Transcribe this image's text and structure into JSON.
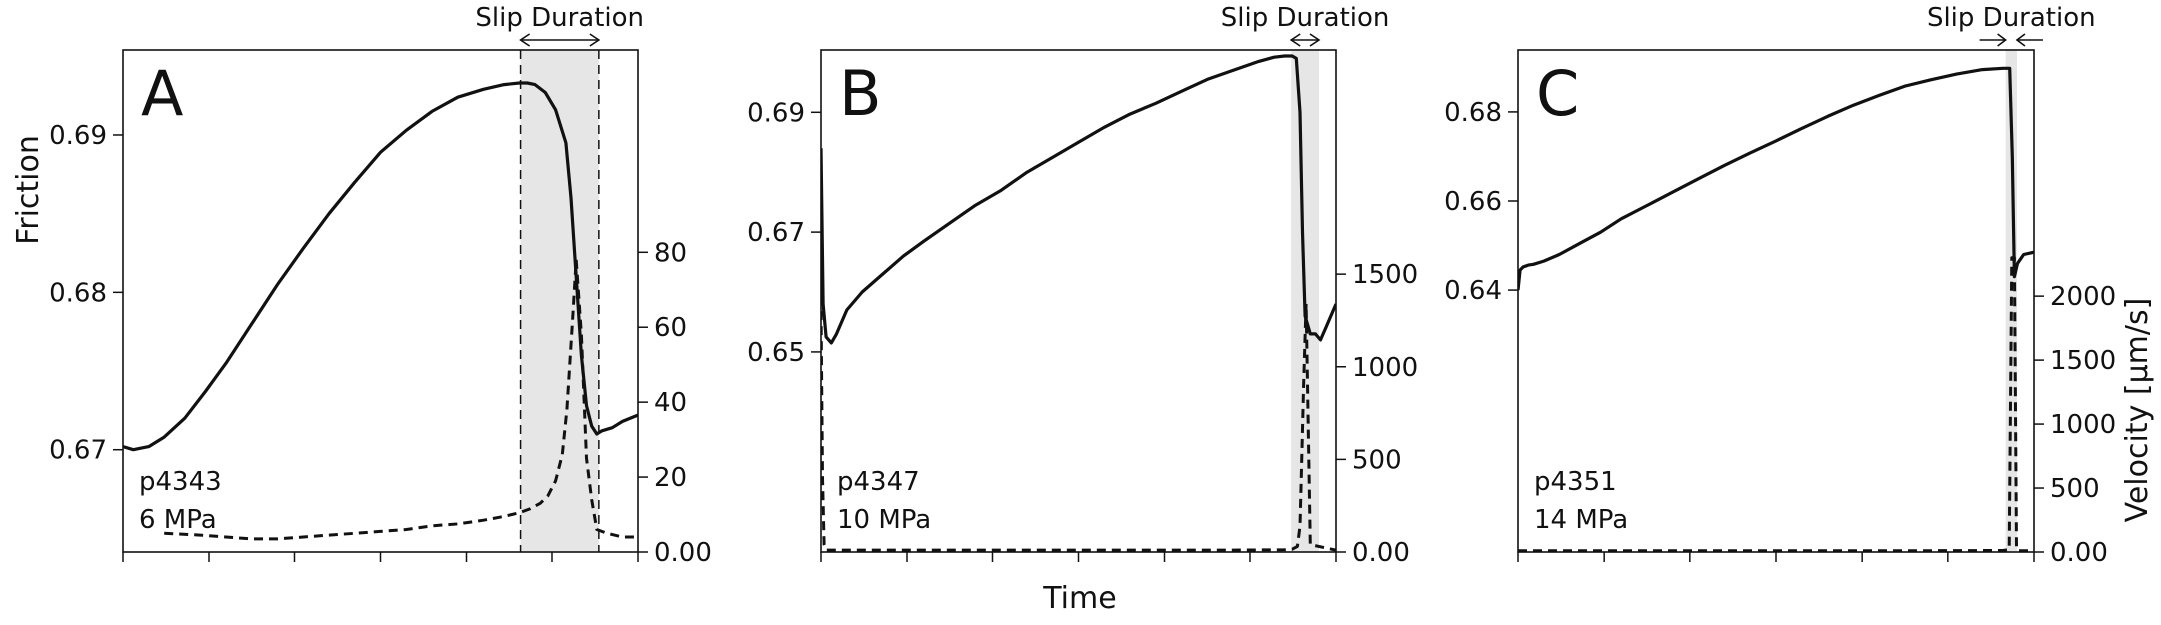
{
  "figure": {
    "x_label": "Time",
    "friction_label": "Friction",
    "velocity_label": "Velocity [μm/s]",
    "slip_label": "Slip Duration"
  },
  "chart_data": [
    {
      "type": "line",
      "panel": "A",
      "experiment": "p4343",
      "stress": "6 MPa",
      "xlim": [
        0,
        100
      ],
      "friction_ylim": [
        0.6635,
        0.6954
      ],
      "velocity_ylim": [
        0,
        134
      ],
      "friction_ticks": [
        0.67,
        0.68,
        0.69
      ],
      "velocity_ticks": [
        0,
        20,
        40,
        60,
        80
      ],
      "x_ticks": [
        0,
        16.7,
        33.3,
        50,
        66.7,
        83.3,
        100
      ],
      "slip_window": [
        77.2,
        92.4
      ],
      "series": [
        {
          "name": "Friction",
          "x": [
            0,
            2,
            5,
            8,
            12,
            16,
            20,
            25,
            30,
            35,
            40,
            45,
            50,
            55,
            60,
            65,
            70,
            74,
            77,
            78.5,
            80,
            82,
            84,
            86,
            87,
            88,
            89,
            90,
            91,
            92,
            93,
            95,
            97,
            100
          ],
          "y": [
            0.6702,
            0.67,
            0.6702,
            0.6708,
            0.672,
            0.6737,
            0.6755,
            0.678,
            0.6805,
            0.6828,
            0.685,
            0.687,
            0.6889,
            0.6903,
            0.6915,
            0.6924,
            0.6929,
            0.6932,
            0.6933,
            0.6933,
            0.6932,
            0.6927,
            0.6916,
            0.6895,
            0.686,
            0.681,
            0.676,
            0.6728,
            0.6715,
            0.671,
            0.6712,
            0.6714,
            0.6718,
            0.6722
          ]
        },
        {
          "name": "Velocity",
          "x": [
            8,
            15,
            20,
            25,
            30,
            35,
            40,
            45,
            50,
            55,
            60,
            65,
            70,
            74,
            77,
            79,
            81,
            82.5,
            84,
            85.3,
            86.2,
            87.3,
            88,
            89,
            90,
            91,
            92,
            94,
            97,
            100
          ],
          "y": [
            5,
            4.5,
            4,
            3.5,
            3.5,
            4,
            4.5,
            5,
            5.5,
            6,
            7,
            7.5,
            8.5,
            9.5,
            10.5,
            11.5,
            13,
            15,
            19,
            26,
            38,
            62,
            78,
            58,
            25,
            14,
            6,
            5,
            4,
            4
          ]
        }
      ]
    },
    {
      "type": "line",
      "panel": "B",
      "experiment": "p4347",
      "stress": "10 MPa",
      "xlim": [
        0,
        100
      ],
      "friction_ylim": [
        0.6166,
        0.7004
      ],
      "velocity_ylim": [
        0,
        2710
      ],
      "friction_ticks": [
        0.65,
        0.67,
        0.69
      ],
      "velocity_ticks": [
        0,
        500,
        1000,
        1500
      ],
      "x_ticks": [
        0,
        16.7,
        33.3,
        50,
        66.7,
        83.3,
        100
      ],
      "slip_window": [
        91.3,
        96.7
      ],
      "series": [
        {
          "name": "Friction",
          "x": [
            0,
            0.4,
            1,
            2,
            3,
            5,
            8,
            12,
            16,
            20,
            25,
            30,
            35,
            40,
            45,
            50,
            55,
            60,
            65,
            70,
            75,
            80,
            85,
            88,
            90,
            91.5,
            92.3,
            93,
            93.5,
            94,
            95,
            96,
            97,
            98,
            100
          ],
          "y": [
            0.684,
            0.658,
            0.6525,
            0.6515,
            0.653,
            0.657,
            0.66,
            0.663,
            0.666,
            0.6685,
            0.6715,
            0.6745,
            0.677,
            0.68,
            0.6825,
            0.685,
            0.6875,
            0.6897,
            0.6915,
            0.6935,
            0.6955,
            0.697,
            0.6985,
            0.6992,
            0.6994,
            0.6994,
            0.699,
            0.69,
            0.67,
            0.656,
            0.653,
            0.653,
            0.652,
            0.654,
            0.658
          ]
        },
        {
          "name": "Velocity",
          "x": [
            0,
            0.3,
            0.6,
            1,
            2,
            10,
            20,
            40,
            60,
            80,
            90,
            91.5,
            92.5,
            93,
            93.3,
            93.7,
            94.2,
            95,
            100
          ],
          "y": [
            1300,
            400,
            40,
            10,
            10,
            10,
            10,
            10,
            10,
            10,
            12,
            15,
            30,
            140,
            450,
            900,
            1340,
            40,
            10
          ]
        }
      ]
    },
    {
      "type": "line",
      "panel": "C",
      "experiment": "p4351",
      "stress": "14 MPa",
      "xlim": [
        0,
        100
      ],
      "friction_ylim": [
        0.5812,
        0.6939
      ],
      "velocity_ylim": [
        0,
        3924
      ],
      "friction_ticks": [
        0.64,
        0.66,
        0.68
      ],
      "velocity_ticks": [
        0,
        500,
        1000,
        1500,
        2000
      ],
      "x_ticks": [
        0,
        16.7,
        33.3,
        50,
        66.7,
        83.3,
        100
      ],
      "slip_window": [
        94.5,
        96.7
      ],
      "series": [
        {
          "name": "Friction",
          "x": [
            0,
            0.4,
            1,
            2,
            3,
            5,
            8,
            12,
            16,
            20,
            25,
            30,
            35,
            40,
            45,
            50,
            55,
            60,
            65,
            70,
            75,
            80,
            85,
            90,
            94,
            95.3,
            95.8,
            96.2,
            96.8,
            98,
            100
          ],
          "y": [
            0.64,
            0.6445,
            0.6452,
            0.6456,
            0.6458,
            0.6465,
            0.648,
            0.6505,
            0.653,
            0.656,
            0.659,
            0.662,
            0.665,
            0.668,
            0.6708,
            0.6735,
            0.6763,
            0.679,
            0.6815,
            0.6837,
            0.6858,
            0.6872,
            0.6885,
            0.6895,
            0.6898,
            0.6898,
            0.67,
            0.643,
            0.646,
            0.648,
            0.6485
          ]
        },
        {
          "name": "Velocity",
          "x": [
            0,
            20,
            40,
            60,
            80,
            94,
            95.2,
            95.7,
            96.2,
            96.6,
            97,
            100
          ],
          "y": [
            10,
            10,
            10,
            10,
            10,
            12,
            20,
            2300,
            2300,
            20,
            10,
            10
          ]
        }
      ]
    }
  ]
}
